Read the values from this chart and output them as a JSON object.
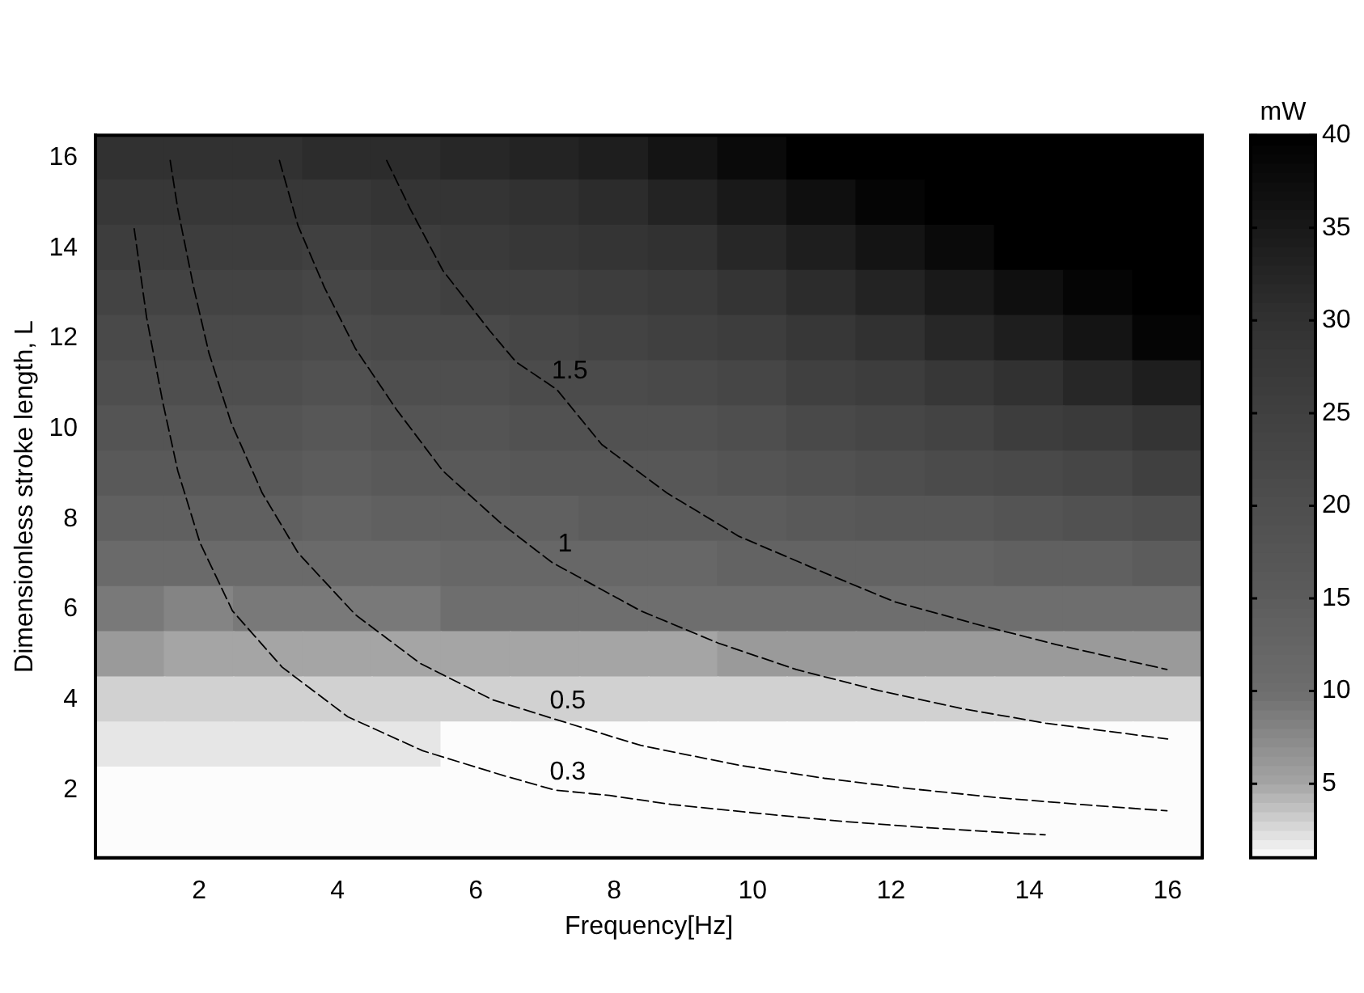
{
  "chart_data": [
    {
      "type": "heatmap",
      "clabel": "mW",
      "categories": [
        null,
        null,
        null,
        null,
        null,
        null,
        null,
        null,
        null,
        null,
        null,
        null,
        null,
        null,
        null,
        null
      ],
      "y_categories": [
        null,
        null,
        null,
        null,
        null,
        null,
        null,
        null,
        null,
        null,
        null,
        null,
        null,
        null,
        null,
        null
      ],
      "cells": [
        [
          30,
          30,
          30,
          31,
          31,
          32,
          33,
          34,
          36,
          38,
          40,
          40,
          40,
          40,
          40,
          40
        ],
        [
          28,
          28,
          28,
          28,
          29,
          29,
          30,
          31,
          33,
          35,
          37,
          39,
          40,
          40,
          40,
          40
        ],
        [
          26,
          26,
          26,
          25,
          26,
          27,
          28,
          29,
          30,
          32,
          34,
          36,
          38,
          40,
          40,
          40
        ],
        [
          24,
          24,
          24,
          23,
          24,
          25,
          25,
          26,
          27,
          29,
          31,
          33,
          35,
          37,
          39,
          40
        ],
        [
          22,
          22,
          22,
          21,
          22,
          22,
          23,
          24,
          25,
          26,
          28,
          30,
          32,
          34,
          36,
          39
        ],
        [
          20,
          20,
          20,
          19,
          20,
          20,
          21,
          21,
          22,
          23,
          25,
          26,
          28,
          30,
          32,
          34
        ],
        [
          18,
          18,
          18,
          17,
          18,
          18,
          19,
          19,
          19,
          20,
          22,
          23,
          24,
          26,
          27,
          29
        ],
        [
          16,
          16,
          16,
          15,
          16,
          16,
          17,
          17,
          17,
          18,
          19,
          20,
          21,
          22,
          23,
          25
        ],
        [
          14,
          14,
          14,
          13,
          14,
          14,
          14,
          15,
          15,
          15,
          16,
          17,
          17,
          18,
          19,
          20
        ],
        [
          11,
          11,
          11,
          11,
          11,
          12,
          12,
          12,
          12,
          13,
          13,
          13,
          13,
          14,
          14,
          15
        ],
        [
          9,
          8,
          9,
          9,
          9,
          10,
          10,
          10,
          10,
          10,
          10,
          10,
          10,
          10,
          10,
          10
        ],
        [
          6,
          5,
          5,
          5,
          5,
          5,
          5,
          5,
          5,
          6,
          6,
          6,
          6,
          6,
          6,
          6
        ],
        [
          3,
          3,
          3,
          3,
          3,
          3,
          3,
          3,
          3,
          3,
          3,
          3,
          3,
          3,
          3,
          3
        ],
        [
          2,
          2,
          2,
          2,
          2,
          1,
          1,
          1,
          1,
          1,
          1,
          1,
          1,
          1,
          1,
          1
        ],
        [
          1,
          1,
          1,
          1,
          1,
          1,
          1,
          1,
          1,
          1,
          1,
          1,
          1,
          1,
          1,
          1
        ],
        [
          1,
          1,
          1,
          1,
          1,
          1,
          1,
          1,
          1,
          1,
          1,
          1,
          1,
          1,
          1,
          1
        ]
      ],
      "clim": [
        1,
        40
      ],
      "cticks": [
        5,
        10,
        15,
        20,
        25,
        30,
        35,
        40
      ]
    },
    {
      "type": "line",
      "xlabel": "Frequency[Hz]",
      "ylabel": "Dimensionless stroke length, L",
      "line_style": "dashed",
      "xlim": [
        0.5,
        16.5
      ],
      "ylim": [
        0.5,
        16.5
      ],
      "xticks": [
        2,
        4,
        6,
        8,
        10,
        12,
        14,
        16
      ],
      "yticks": [
        2,
        4,
        6,
        8,
        10,
        12,
        14,
        16
      ],
      "series": [
        {
          "name": "0.3",
          "color": "#000000",
          "x": [
            1.06,
            1.24,
            1.47,
            1.69,
            2.01,
            2.48,
            3.2,
            4.15,
            5.23,
            6.4,
            7.14,
            7.93,
            8.83,
            10.11,
            11.35,
            12.59,
            13.83,
            14.23
          ],
          "values": [
            14.43,
            12.46,
            10.61,
            9.07,
            7.48,
            5.97,
            4.72,
            3.62,
            2.87,
            2.32,
            2.0,
            1.88,
            1.68,
            1.48,
            1.3,
            1.16,
            1.04,
            1.01
          ]
        },
        {
          "name": "0.5",
          "color": "#000000",
          "x": [
            1.58,
            1.69,
            1.92,
            2.14,
            2.46,
            2.91,
            3.43,
            4.26,
            5.19,
            6.24,
            7.14,
            8.38,
            9.8,
            11.04,
            12.28,
            13.56,
            14.75,
            15.99
          ],
          "values": [
            15.94,
            14.87,
            13.13,
            11.68,
            10.14,
            8.58,
            7.25,
            5.88,
            4.81,
            4.0,
            3.57,
            2.99,
            2.55,
            2.26,
            2.03,
            1.83,
            1.68,
            1.54
          ]
        },
        {
          "name": "1",
          "color": "#000000",
          "x": [
            3.16,
            3.43,
            3.81,
            4.26,
            4.85,
            5.52,
            6.36,
            7.1,
            8.38,
            9.51,
            10.63,
            11.83,
            13.04,
            14.24,
            16.0
          ],
          "values": [
            15.94,
            14.49,
            13.13,
            11.77,
            10.43,
            9.07,
            7.91,
            7.04,
            5.97,
            5.25,
            4.67,
            4.2,
            3.8,
            3.48,
            3.13
          ]
        },
        {
          "name": "1.5",
          "color": "#000000",
          "x": [
            4.71,
            5.05,
            5.52,
            6.2,
            6.58,
            7.17,
            7.82,
            8.76,
            9.8,
            10.9,
            12.05,
            13.22,
            14.39,
            15.99
          ],
          "values": [
            15.94,
            14.87,
            13.51,
            12.17,
            11.48,
            10.87,
            9.65,
            8.58,
            7.62,
            6.9,
            6.17,
            5.68,
            5.22,
            4.67
          ]
        }
      ]
    }
  ]
}
